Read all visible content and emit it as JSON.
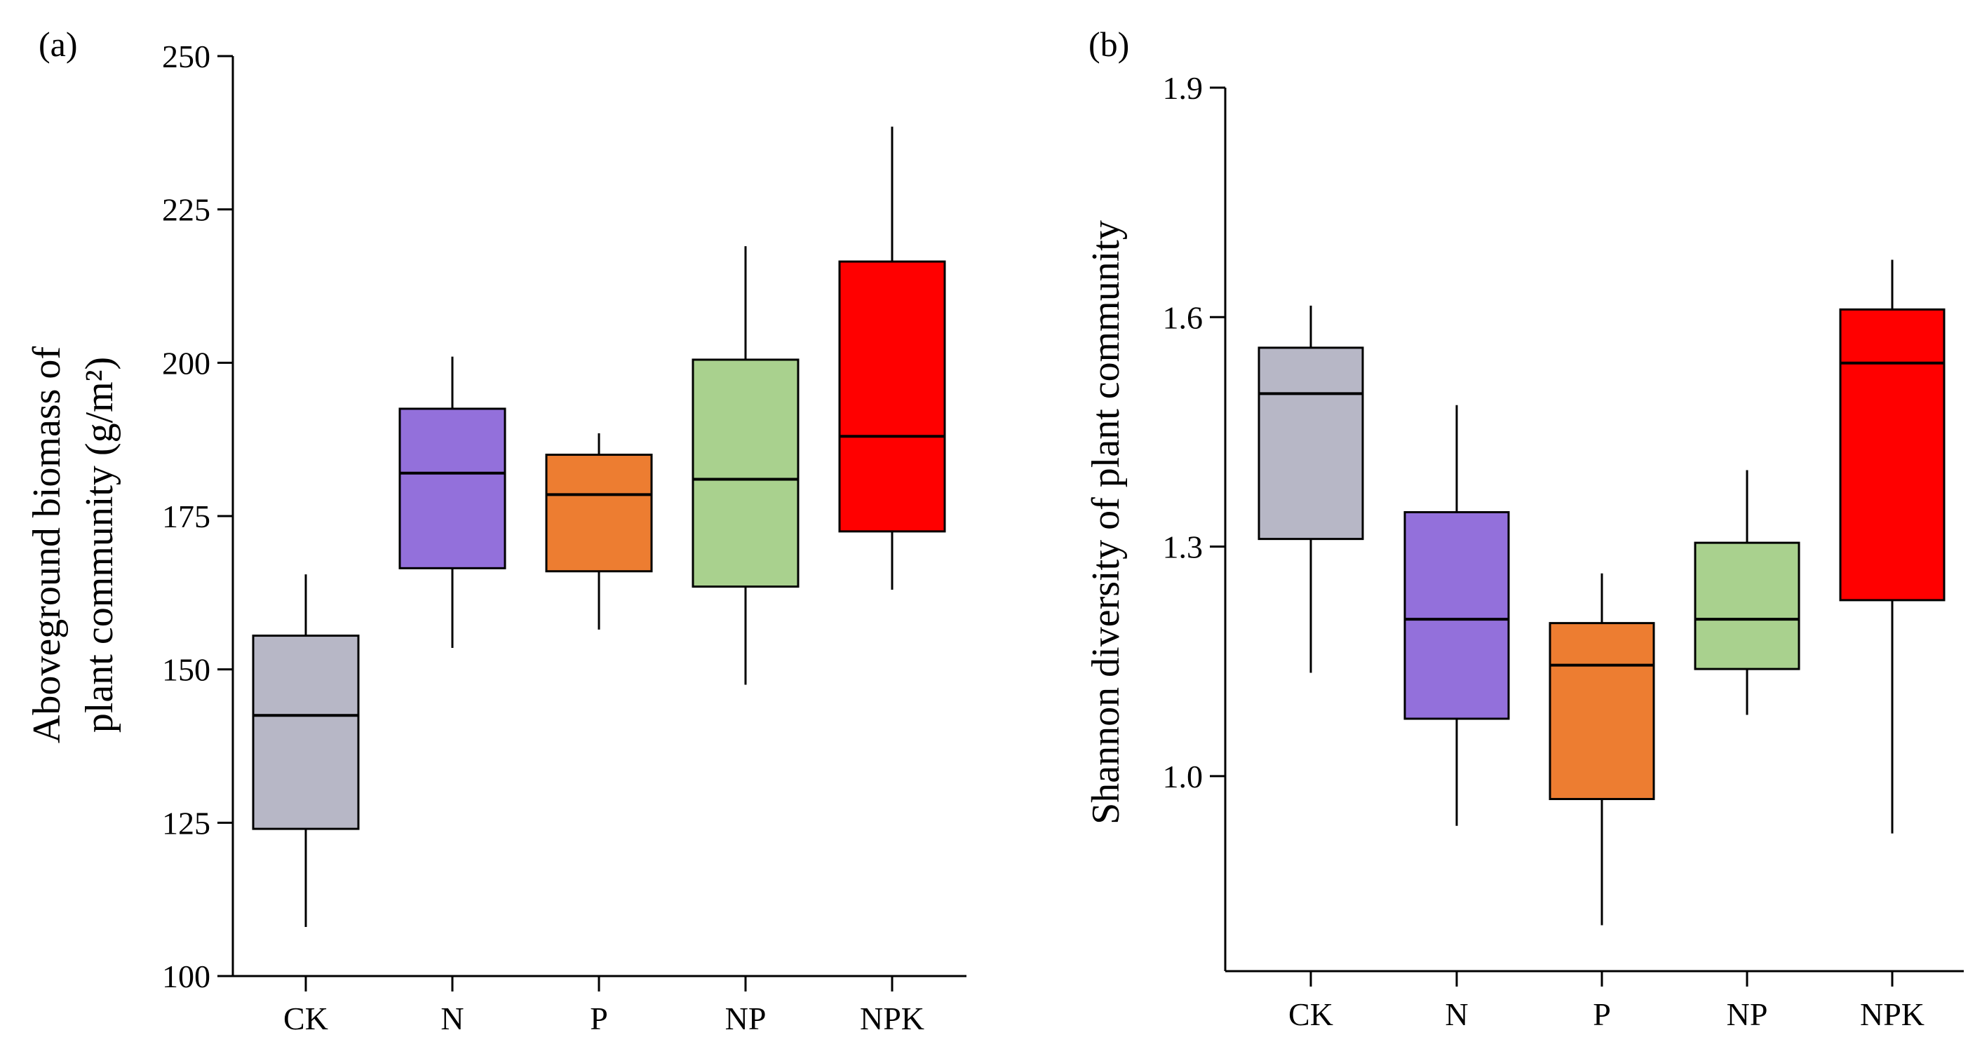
{
  "chart_data": [
    {
      "type": "box",
      "panel_label": "(a)",
      "title": "",
      "ylabel_lines": [
        "Aboveground biomass of",
        "plant community (g/m²)"
      ],
      "xlabel": "",
      "ylim": [
        100,
        250
      ],
      "yticks": [
        "100",
        "125",
        "150",
        "175",
        "200",
        "225",
        "250"
      ],
      "ytick_values": [
        100,
        125,
        150,
        175,
        200,
        225,
        250
      ],
      "categories": [
        "CK",
        "N",
        "P",
        "NP",
        "NPK"
      ],
      "colors": [
        "#b7b7c6",
        "#9370db",
        "#ed7d31",
        "#a9d18e",
        "#ff0000"
      ],
      "boxes": [
        {
          "min": 108,
          "q1": 124,
          "median": 142.5,
          "q3": 155.5,
          "max": 165.5
        },
        {
          "min": 153.5,
          "q1": 166.5,
          "median": 182,
          "q3": 192.5,
          "max": 201
        },
        {
          "min": 156.5,
          "q1": 166,
          "median": 178.5,
          "q3": 185,
          "max": 188.5
        },
        {
          "min": 147.5,
          "q1": 163.5,
          "median": 181,
          "q3": 200.5,
          "max": 219
        },
        {
          "min": 163,
          "q1": 172.5,
          "median": 188,
          "q3": 216.5,
          "max": 238.5
        }
      ]
    },
    {
      "type": "box",
      "panel_label": "(b)",
      "title": "",
      "ylabel_lines": [
        "Shannon diversity of plant community"
      ],
      "xlabel": "",
      "ylim": [
        0.745,
        1.9
      ],
      "yticks": [
        "1.0",
        "1.3",
        "1.6",
        "1.9"
      ],
      "ytick_values": [
        1.0,
        1.3,
        1.6,
        1.9
      ],
      "categories": [
        "CK",
        "N",
        "P",
        "NP",
        "NPK"
      ],
      "colors": [
        "#b7b7c6",
        "#9370db",
        "#ed7d31",
        "#a9d18e",
        "#ff0000"
      ],
      "boxes": [
        {
          "min": 1.135,
          "q1": 1.31,
          "median": 1.5,
          "q3": 1.56,
          "max": 1.615
        },
        {
          "min": 0.935,
          "q1": 1.075,
          "median": 1.205,
          "q3": 1.345,
          "max": 1.485
        },
        {
          "min": 0.805,
          "q1": 0.97,
          "median": 1.145,
          "q3": 1.2,
          "max": 1.265
        },
        {
          "min": 1.08,
          "q1": 1.14,
          "median": 1.205,
          "q3": 1.305,
          "max": 1.4
        },
        {
          "min": 0.925,
          "q1": 1.23,
          "median": 1.54,
          "q3": 1.61,
          "max": 1.675
        }
      ]
    }
  ]
}
